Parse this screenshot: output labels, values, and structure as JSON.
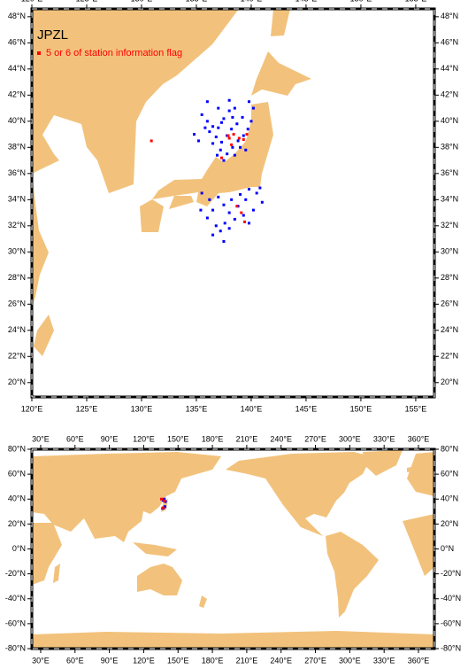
{
  "maps": [
    {
      "title": "JPZL",
      "legend": "5 or 6 of station information flag",
      "xlim": [
        120,
        156.7
      ],
      "ylim": [
        18.9,
        48.6
      ],
      "xticks": [
        {
          "value": 120,
          "label": "120°E"
        },
        {
          "value": 125,
          "label": "125°E"
        },
        {
          "value": 130,
          "label": "130°E"
        },
        {
          "value": 135,
          "label": "135°E"
        },
        {
          "value": 140,
          "label": "140°E"
        },
        {
          "value": 145,
          "label": "145°E"
        },
        {
          "value": 150,
          "label": "150°E"
        },
        {
          "value": 155,
          "label": "155°E"
        }
      ],
      "yticks": [
        {
          "value": 20,
          "label": "20°N"
        },
        {
          "value": 22,
          "label": "22°N"
        },
        {
          "value": 24,
          "label": "24°N"
        },
        {
          "value": 26,
          "label": "26°N"
        },
        {
          "value": 28,
          "label": "28°N"
        },
        {
          "value": 30,
          "label": "30°N"
        },
        {
          "value": 32,
          "label": "32°N"
        },
        {
          "value": 34,
          "label": "34°N"
        },
        {
          "value": 36,
          "label": "36°N"
        },
        {
          "value": 38,
          "label": "38°N"
        },
        {
          "value": 40,
          "label": "40°N"
        },
        {
          "value": 42,
          "label": "42°N"
        },
        {
          "value": 44,
          "label": "44°N"
        },
        {
          "value": 46,
          "label": "46°N"
        },
        {
          "value": 48,
          "label": "48°N"
        }
      ],
      "stations": {
        "color": "#0000ff",
        "lon": [
          135.5,
          136,
          136.5,
          137,
          137.5,
          138,
          138.5,
          136.2,
          136.8,
          137.3,
          137.8,
          138.2,
          138.7,
          139.2,
          135.8,
          136.5,
          137.2,
          137.8,
          138.3,
          138.8,
          139.3,
          139.7,
          140,
          136.9,
          137.5,
          138.5,
          139,
          140.2,
          139.8,
          137,
          134.8,
          135.2,
          139.5,
          136,
          138,
          137.3,
          138.3,
          135.5,
          136.2,
          137,
          137.5,
          138.2,
          139,
          139.8,
          140.5,
          141,
          140.2,
          139.3,
          138.5,
          137.6,
          136.8,
          136,
          135.4,
          137.2,
          136.5,
          138,
          137.5,
          139.5,
          138.8,
          140.8,
          136.5,
          138,
          139.8
        ],
        "lat": [
          40.5,
          40,
          39.6,
          39.5,
          40.2,
          40.8,
          41,
          39.2,
          38.8,
          38.4,
          38.9,
          39.4,
          39.8,
          40.3,
          39.5,
          38.3,
          37.8,
          37.5,
          38,
          38.5,
          38.9,
          39.4,
          40,
          37.4,
          37,
          37.4,
          38,
          41,
          41.5,
          41,
          39,
          38.5,
          37.8,
          41.5,
          41.6,
          39.9,
          40.3,
          34.5,
          34,
          34.2,
          33.6,
          34,
          34.4,
          34.8,
          34.5,
          33.8,
          33.2,
          32.8,
          32.5,
          32.2,
          32,
          32.6,
          33.2,
          31.6,
          31.3,
          31.8,
          30.8,
          34,
          33.5,
          34.9,
          33.2,
          33,
          32.2
        ]
      },
      "flagged": {
        "color": "#ff0000",
        "lon": [
          130.9,
          138,
          138.4,
          138.9,
          139.3,
          138.2,
          137.3,
          138.7,
          139.1,
          139.4,
          137.9,
          139.6
        ],
        "lat": [
          38.5,
          38.7,
          39,
          38.7,
          38.6,
          38.2,
          37.2,
          33.5,
          33,
          32.3,
          38.9,
          39
        ]
      }
    },
    {
      "xlim": [
        22.3,
        373.9
      ],
      "ylim": [
        -80,
        80
      ],
      "xticks": [
        {
          "value": 30,
          "label": "30°E"
        },
        {
          "value": 60,
          "label": "60°E"
        },
        {
          "value": 90,
          "label": "90°E"
        },
        {
          "value": 120,
          "label": "120°E"
        },
        {
          "value": 150,
          "label": "150°E"
        },
        {
          "value": 180,
          "label": "180°E"
        },
        {
          "value": 210,
          "label": "210°E"
        },
        {
          "value": 240,
          "label": "240°E"
        },
        {
          "value": 270,
          "label": "270°E"
        },
        {
          "value": 300,
          "label": "300°E"
        },
        {
          "value": 330,
          "label": "330°E"
        },
        {
          "value": 360,
          "label": "360°E"
        }
      ],
      "yticks": [
        {
          "value": -80,
          "label": "-80°N"
        },
        {
          "value": -60,
          "label": "-60°N"
        },
        {
          "value": -40,
          "label": "-40°N"
        },
        {
          "value": -20,
          "label": "-20°N"
        },
        {
          "value": 0,
          "label": "0°N"
        },
        {
          "value": 20,
          "label": "20°N"
        },
        {
          "value": 40,
          "label": "40°N"
        },
        {
          "value": 60,
          "label": "60°N"
        },
        {
          "value": 80,
          "label": "80°N"
        }
      ],
      "stations": {
        "color": "#0000ff",
        "lon": [
          137,
          138,
          137.5,
          138.5,
          136.5,
          139
        ],
        "lat": [
          39,
          40,
          33,
          34,
          32.5,
          38
        ]
      },
      "flagged": {
        "color": "#ff0000",
        "lon": [
          138,
          137,
          135.5
        ],
        "lat": [
          38.5,
          33,
          40
        ]
      }
    }
  ]
}
